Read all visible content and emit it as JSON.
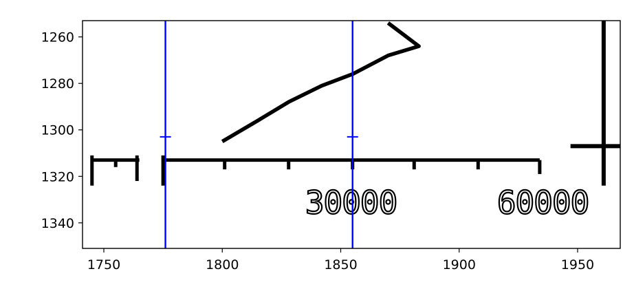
{
  "chart_data": {
    "type": "line",
    "title": "",
    "xlabel": "",
    "ylabel": "",
    "xlim": [
      1741,
      1968
    ],
    "ylim": [
      1351,
      1253
    ],
    "x_ticks": [
      1750,
      1800,
      1850,
      1900,
      1950
    ],
    "y_ticks": [
      1260,
      1280,
      1300,
      1320,
      1340
    ],
    "grid": false,
    "colors": {
      "image_ink": "#000000",
      "vertical_lines": "#0000ff",
      "axes": "#000000"
    },
    "vertical_lines": [
      {
        "x": 1776,
        "marker_y": 1303
      },
      {
        "x": 1855,
        "marker_y": 1303
      }
    ],
    "image_content": {
      "curve": [
        [
          1870,
          1254
        ],
        [
          1883,
          1264
        ],
        [
          1870,
          1268
        ],
        [
          1855,
          1276
        ],
        [
          1842,
          1281
        ],
        [
          1828,
          1288
        ],
        [
          1815,
          1296
        ],
        [
          1800,
          1305
        ]
      ],
      "scale_labels": [
        "30000",
        "60000"
      ]
    }
  }
}
